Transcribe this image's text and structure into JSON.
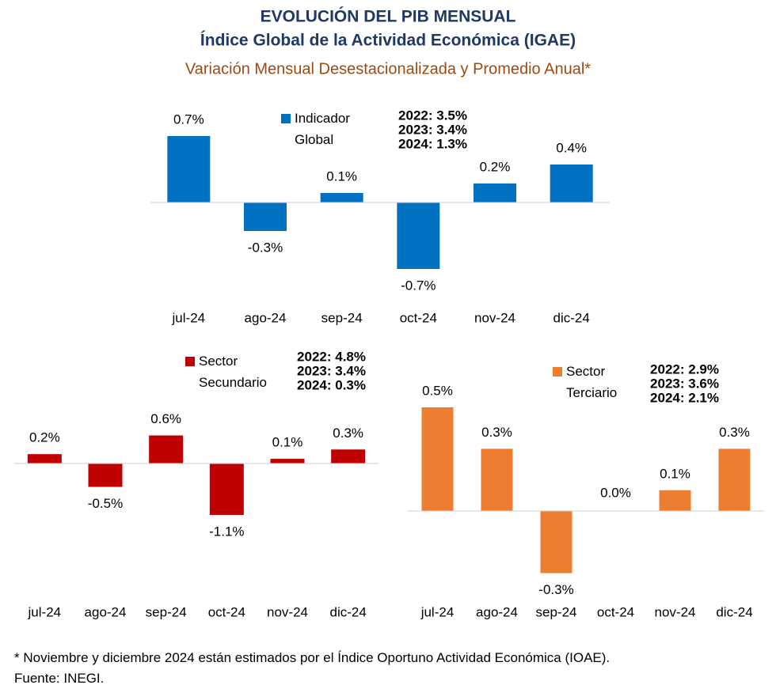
{
  "title": "EVOLUCIÓN DEL PIB MENSUAL",
  "subtitle": "Índice Global de la Actividad Económica (IGAE)",
  "subtitle2": "Variación Mensual Desestacionalizada y Promedio Anual*",
  "chart_data": [
    {
      "type": "bar",
      "categories": [
        "jul-24",
        "ago-24",
        "sep-24",
        "oct-24",
        "nov-24",
        "dic-24"
      ],
      "series": [
        {
          "name": "Indicador Global",
          "color": "#0070c0",
          "values": [
            0.7,
            -0.3,
            0.1,
            -0.7,
            0.2,
            0.4
          ],
          "value_labels": [
            "0.7%",
            "-0.3%",
            "0.1%",
            "-0.7%",
            "0.2%",
            "0.4%"
          ]
        }
      ],
      "annotations": [
        "2022: 3.5%",
        "2023: 3.4%",
        "2024: 1.3%"
      ]
    },
    {
      "type": "bar",
      "categories": [
        "jul-24",
        "ago-24",
        "sep-24",
        "oct-24",
        "nov-24",
        "dic-24"
      ],
      "series": [
        {
          "name": "Sector Secundario",
          "color": "#c00000",
          "values": [
            0.2,
            -0.5,
            0.6,
            -1.1,
            0.1,
            0.3
          ],
          "value_labels": [
            "0.2%",
            "-0.5%",
            "0.6%",
            "-1.1%",
            "0.1%",
            "0.3%"
          ]
        }
      ],
      "annotations": [
        "2022: 4.8%",
        "2023: 3.4%",
        "2024: 0.3%"
      ]
    },
    {
      "type": "bar",
      "categories": [
        "jul-24",
        "ago-24",
        "sep-24",
        "oct-24",
        "nov-24",
        "dic-24"
      ],
      "series": [
        {
          "name": "Sector Terciario",
          "color": "#ed7d31",
          "values": [
            0.5,
            0.3,
            -0.3,
            0.0,
            0.1,
            0.3
          ],
          "value_labels": [
            "0.5%",
            "0.3%",
            "-0.3%",
            "0.0%",
            "0.1%",
            "0.3%"
          ]
        }
      ],
      "annotations": [
        "2022: 2.9%",
        "2023: 3.6%",
        "2024: 2.1%"
      ]
    }
  ],
  "notes": [
    "* Noviembre y diciembre 2024 están estimados por el Índice Oportuno Actividad Económica (IOAE).",
    "Fuente:  INEGI."
  ]
}
